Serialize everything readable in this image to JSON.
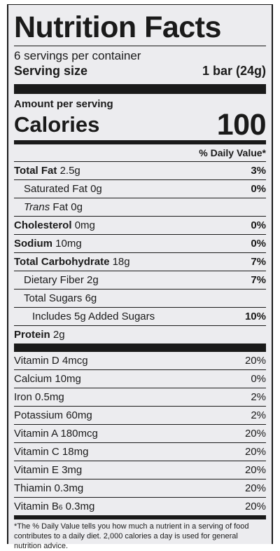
{
  "panel": {
    "title": "Nutrition Facts",
    "servings_per_container": "6 servings per container",
    "serving_size_label": "Serving size",
    "serving_size_value": "1 bar (24g)",
    "amount_per_serving": "Amount per serving",
    "calories_label": "Calories",
    "calories_value": "100",
    "daily_value_header": "% Daily Value*"
  },
  "nutrients": [
    {
      "name": "Total Fat",
      "amount": "2.5g",
      "dv": "3%"
    },
    {
      "name": "Saturated Fat",
      "amount": "0g",
      "dv": "0%"
    },
    {
      "name_italic": "Trans",
      "name": "Fat",
      "amount": "0g",
      "dv": ""
    },
    {
      "name": "Cholesterol",
      "amount": "0mg",
      "dv": "0%"
    },
    {
      "name": "Sodium",
      "amount": "10mg",
      "dv": "0%"
    },
    {
      "name": "Total Carbohydrate",
      "amount": "18g",
      "dv": "7%"
    },
    {
      "name": "Dietary Fiber",
      "amount": "2g",
      "dv": "7%"
    },
    {
      "name": "Total Sugars",
      "amount": "6g",
      "dv": ""
    },
    {
      "name": "Includes 5g Added Sugars",
      "amount": "",
      "dv": "10%"
    },
    {
      "name": "Protein",
      "amount": "2g",
      "dv": ""
    }
  ],
  "vitamins": [
    {
      "name": "Vitamin D",
      "amount": "4mcg",
      "dv": "20%"
    },
    {
      "name": "Calcium",
      "amount": "10mg",
      "dv": "0%"
    },
    {
      "name": "Iron",
      "amount": "0.5mg",
      "dv": "2%"
    },
    {
      "name": "Potassium",
      "amount": "60mg",
      "dv": "2%"
    },
    {
      "name": "Vitamin A",
      "amount": "180mcg",
      "dv": "20%"
    },
    {
      "name": "Vitamin C",
      "amount": "18mg",
      "dv": "20%"
    },
    {
      "name": "Vitamin E",
      "amount": "3mg",
      "dv": "20%"
    },
    {
      "name": "Thiamin",
      "amount": "0.3mg",
      "dv": "20%"
    },
    {
      "name": "Vitamin B",
      "subscript": "6",
      "amount": "0.3mg",
      "dv": "20%"
    }
  ],
  "footnote": "*The % Daily Value tells you how much a nutrient in a serving of food contributes to a daily diet. 2,000 calories a day is used for general nutrition advice."
}
